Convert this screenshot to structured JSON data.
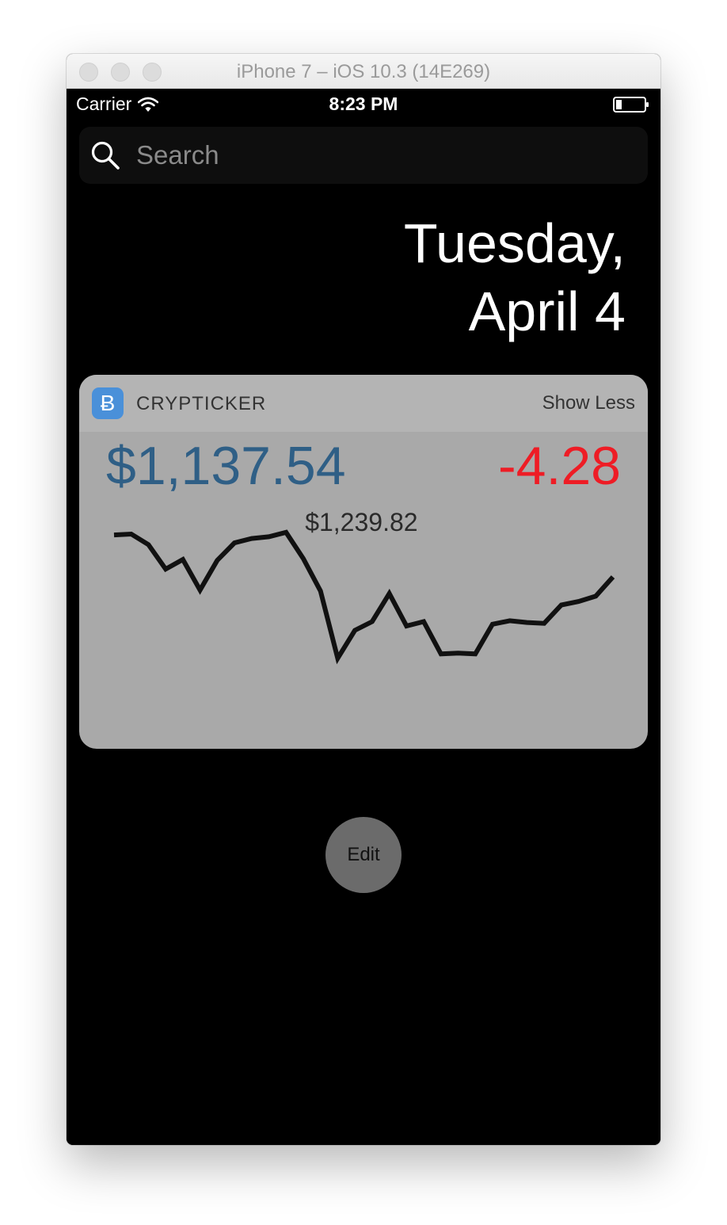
{
  "window": {
    "title": "iPhone 7 – iOS 10.3 (14E269)"
  },
  "status_bar": {
    "carrier": "Carrier",
    "time": "8:23 PM"
  },
  "search": {
    "placeholder": "Search"
  },
  "date": {
    "line1": "Tuesday,",
    "line2": "April 4"
  },
  "widget": {
    "app_icon_glyph": "Ƀ",
    "app_name": "CRYPTICKER",
    "show_less_label": "Show Less",
    "price": "$1,137.54",
    "change": "-4.28",
    "colors": {
      "price": "#2f5f86",
      "change": "#ee1c25",
      "icon_bg": "#4a90d9"
    }
  },
  "chart_data": {
    "type": "line",
    "title": "",
    "xlabel": "",
    "ylabel": "",
    "peak_label": "$1,239.82",
    "peak_index": 10,
    "ylim": [
      1010,
      1250
    ],
    "series": [
      {
        "values": [
          1239,
          1240,
          1228,
          1200,
          1211,
          1176,
          1210,
          1230,
          1235,
          1237,
          1242,
          1212,
          1175,
          1098,
          1130,
          1140,
          1172,
          1135,
          1140,
          1103,
          1104,
          1103,
          1137,
          1141,
          1139,
          1138,
          1159,
          1163,
          1169,
          1191
        ]
      }
    ]
  },
  "edit_button": {
    "label": "Edit"
  }
}
